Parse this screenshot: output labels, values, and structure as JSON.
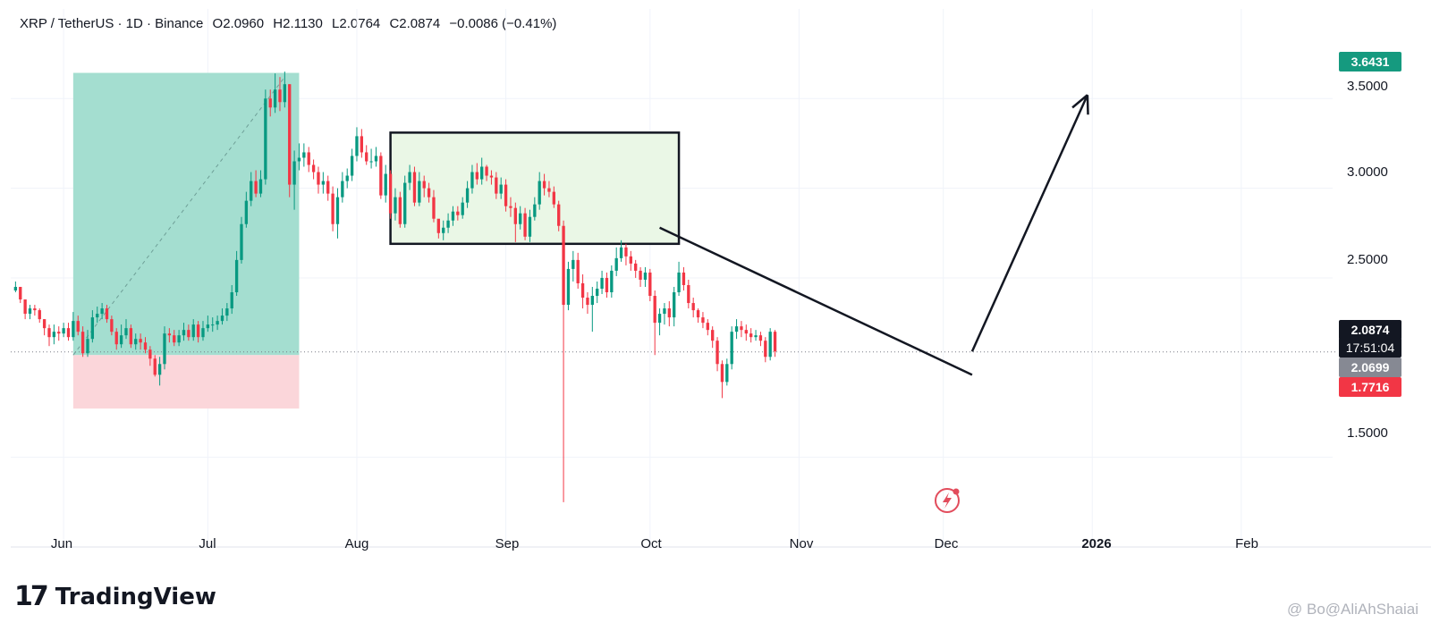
{
  "header": {
    "symbol": "XRP / TetherUS · 1D · Binance",
    "open": "O2.0960",
    "high": "H2.1130",
    "low": "L2.0764",
    "close": "C2.0874",
    "change": "−0.0086 (−0.41%)"
  },
  "logo": {
    "mark": "17",
    "text": "TradingView"
  },
  "watermark": "@ Bo@AliAhShaiai",
  "price_labels": {
    "target": "3.6431",
    "current": "2.0874",
    "countdown": "17:51:04",
    "entry": "2.0699",
    "stop": "1.7716"
  },
  "colors": {
    "up": "#089981",
    "down": "#f23645",
    "target_zone": "#9fdcce",
    "stop_zone": "#fbd6da",
    "consolidation_fill": "#eaf7e6",
    "current_label": "#131722",
    "entry_label": "#868993",
    "target_label": "#159a7f",
    "stop_label": "#f23645"
  },
  "chart_data": {
    "type": "candlestick",
    "symbol": "XRP / TetherUS",
    "timeframe": "1D",
    "exchange": "Binance",
    "y_ticks": [
      "3.5000",
      "3.0000",
      "2.5000",
      "1.5000"
    ],
    "y_tick_values": [
      3.5,
      3.0,
      2.5,
      1.5
    ],
    "x_ticks": [
      "Jun",
      "Jul",
      "Aug",
      "Sep",
      "Oct",
      "Nov",
      "Dec",
      "2026",
      "Feb"
    ],
    "x_tick_days": [
      0,
      30,
      61,
      92,
      122,
      153,
      183,
      214,
      245
    ],
    "ylim": [
      1.0,
      3.85
    ],
    "xlim_days": [
      -11,
      264
    ],
    "candle_start_day": -10,
    "closes": [
      2.45,
      2.38,
      2.3,
      2.33,
      2.32,
      2.27,
      2.22,
      2.17,
      2.2,
      2.19,
      2.22,
      2.17,
      2.26,
      2.2,
      2.08,
      2.16,
      2.28,
      2.3,
      2.33,
      2.27,
      2.2,
      2.13,
      2.18,
      2.22,
      2.13,
      2.16,
      2.14,
      2.1,
      2.05,
      1.96,
      2.02,
      2.19,
      2.18,
      2.14,
      2.18,
      2.21,
      2.17,
      2.24,
      2.17,
      2.22,
      2.24,
      2.24,
      2.26,
      2.29,
      2.33,
      2.42,
      2.6,
      2.8,
      2.93,
      3.04,
      2.97,
      3.05,
      3.5,
      3.45,
      3.55,
      3.48,
      3.58,
      3.02,
      3.15,
      3.17,
      3.2,
      3.13,
      3.09,
      3.02,
      3.04,
      2.97,
      2.8,
      2.95,
      3.04,
      3.07,
      3.18,
      3.29,
      3.2,
      3.15,
      3.15,
      3.18,
      2.96,
      3.08,
      2.86,
      2.95,
      2.8,
      3.03,
      3.09,
      2.92,
      3.04,
      3.0,
      2.95,
      2.83,
      2.75,
      2.78,
      2.82,
      2.87,
      2.85,
      2.92,
      3.0,
      3.09,
      3.05,
      3.12,
      3.07,
      3.06,
      2.97,
      3.02,
      2.9,
      2.89,
      2.8,
      2.86,
      2.73,
      2.84,
      2.91,
      3.04,
      3.0,
      2.98,
      2.91,
      2.79,
      2.35,
      2.55,
      2.6,
      2.47,
      2.39,
      2.35,
      2.4,
      2.44,
      2.5,
      2.42,
      2.54,
      2.61,
      2.67,
      2.62,
      2.58,
      2.54,
      2.49,
      2.53,
      2.4,
      2.25,
      2.3,
      2.33,
      2.28,
      2.42,
      2.53,
      2.46,
      2.36,
      2.32,
      2.28,
      2.25,
      2.21,
      2.15,
      2.02,
      1.92,
      2.02,
      2.2,
      2.23,
      2.21,
      2.19,
      2.17,
      2.18,
      2.15,
      2.06,
      2.2,
      2.09
    ],
    "highs": [
      2.48,
      2.45,
      2.36,
      2.35,
      2.35,
      2.33,
      2.27,
      2.24,
      2.24,
      2.23,
      2.25,
      2.25,
      2.31,
      2.29,
      2.23,
      2.21,
      2.32,
      2.34,
      2.36,
      2.35,
      2.29,
      2.22,
      2.24,
      2.27,
      2.24,
      2.19,
      2.19,
      2.17,
      2.12,
      2.07,
      2.06,
      2.23,
      2.22,
      2.21,
      2.21,
      2.25,
      2.24,
      2.27,
      2.26,
      2.26,
      2.29,
      2.28,
      2.29,
      2.33,
      2.36,
      2.46,
      2.65,
      2.84,
      2.98,
      3.09,
      3.1,
      3.1,
      3.55,
      3.55,
      3.64,
      3.62,
      3.65,
      3.58,
      3.21,
      3.25,
      3.25,
      3.23,
      3.16,
      3.12,
      3.09,
      3.07,
      3.01,
      3.0,
      3.09,
      3.11,
      3.22,
      3.34,
      3.33,
      3.24,
      3.22,
      3.23,
      3.2,
      3.13,
      3.1,
      3.0,
      2.98,
      3.07,
      3.13,
      3.12,
      3.09,
      3.07,
      3.03,
      2.99,
      2.81,
      2.82,
      2.86,
      2.9,
      2.9,
      2.95,
      3.04,
      3.13,
      3.14,
      3.17,
      3.13,
      3.1,
      3.09,
      3.06,
      3.05,
      2.95,
      2.92,
      2.9,
      2.89,
      2.88,
      2.95,
      3.09,
      3.08,
      3.04,
      3.01,
      2.93,
      2.82,
      2.59,
      2.65,
      2.64,
      2.52,
      2.42,
      2.45,
      2.48,
      2.54,
      2.53,
      2.57,
      2.67,
      2.71,
      2.69,
      2.65,
      2.6,
      2.56,
      2.56,
      2.55,
      2.43,
      2.33,
      2.36,
      2.37,
      2.45,
      2.59,
      2.56,
      2.49,
      2.39,
      2.33,
      2.31,
      2.27,
      2.23,
      2.17,
      2.04,
      2.05,
      2.23,
      2.27,
      2.26,
      2.24,
      2.22,
      2.21,
      2.2,
      2.17,
      2.22,
      2.21
    ],
    "lows": [
      2.42,
      2.36,
      2.27,
      2.27,
      2.29,
      2.25,
      2.18,
      2.12,
      2.13,
      2.15,
      2.17,
      2.15,
      2.15,
      2.18,
      2.06,
      2.06,
      2.14,
      2.25,
      2.27,
      2.25,
      2.18,
      2.1,
      2.11,
      2.16,
      2.11,
      2.1,
      2.1,
      2.08,
      2.01,
      1.95,
      1.9,
      1.99,
      2.14,
      2.12,
      2.12,
      2.15,
      2.15,
      2.15,
      2.14,
      2.15,
      2.2,
      2.2,
      2.21,
      2.24,
      2.26,
      2.3,
      2.4,
      2.58,
      2.78,
      2.9,
      2.95,
      2.95,
      3.02,
      3.4,
      3.42,
      3.43,
      3.45,
      2.95,
      2.88,
      3.1,
      3.12,
      3.09,
      3.05,
      2.97,
      2.97,
      2.93,
      2.76,
      2.72,
      2.92,
      3.0,
      3.04,
      3.15,
      3.17,
      3.13,
      3.11,
      3.12,
      2.94,
      2.92,
      2.83,
      2.82,
      2.78,
      2.78,
      2.99,
      2.9,
      2.9,
      2.95,
      2.92,
      2.81,
      2.72,
      2.71,
      2.75,
      2.79,
      2.82,
      2.83,
      2.89,
      2.97,
      3.02,
      3.02,
      3.04,
      3.02,
      2.94,
      2.94,
      2.87,
      2.84,
      2.7,
      2.77,
      2.71,
      2.7,
      2.82,
      2.88,
      2.96,
      2.95,
      2.89,
      2.76,
      1.25,
      2.32,
      2.48,
      2.44,
      2.33,
      2.3,
      2.2,
      2.36,
      2.41,
      2.39,
      2.39,
      2.51,
      2.59,
      2.57,
      2.54,
      2.5,
      2.45,
      2.45,
      2.37,
      2.07,
      2.18,
      2.24,
      2.23,
      2.23,
      2.4,
      2.43,
      2.33,
      2.28,
      2.25,
      2.22,
      2.18,
      2.11,
      1.98,
      1.83,
      1.9,
      1.99,
      2.16,
      2.17,
      2.15,
      2.14,
      2.15,
      2.12,
      2.03,
      2.04,
      2.06
    ],
    "position": {
      "entry": 2.0699,
      "target": 3.6431,
      "stop": 1.7716,
      "start_day": 2,
      "end_day": 49
    },
    "consolidation_box": {
      "start_day": 68,
      "end_day": 128,
      "top": 3.31,
      "bottom": 2.69
    },
    "trendline": {
      "start_day": 124,
      "start_price": 2.78,
      "end_day": 189,
      "end_price": 1.96
    },
    "projection_arrow": {
      "start_day": 189,
      "start_price": 2.09,
      "end_day": 213,
      "end_price": 3.52
    },
    "current_price": 2.0874
  }
}
